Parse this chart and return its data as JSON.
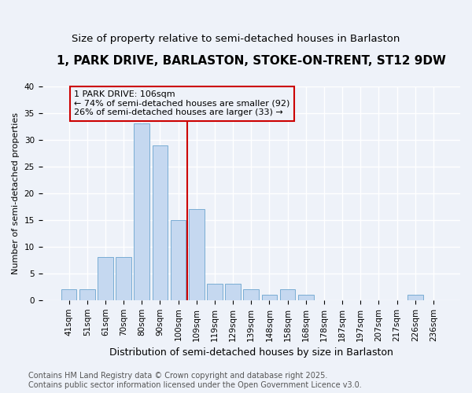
{
  "title": "1, PARK DRIVE, BARLASTON, STOKE-ON-TRENT, ST12 9DW",
  "subtitle": "Size of property relative to semi-detached houses in Barlaston",
  "xlabel": "Distribution of semi-detached houses by size in Barlaston",
  "ylabel": "Number of semi-detached properties",
  "categories": [
    "41sqm",
    "51sqm",
    "61sqm",
    "70sqm",
    "80sqm",
    "90sqm",
    "100sqm",
    "109sqm",
    "119sqm",
    "129sqm",
    "139sqm",
    "148sqm",
    "158sqm",
    "168sqm",
    "178sqm",
    "187sqm",
    "197sqm",
    "207sqm",
    "217sqm",
    "226sqm",
    "236sqm"
  ],
  "values": [
    2,
    2,
    8,
    8,
    33,
    29,
    15,
    17,
    3,
    3,
    2,
    1,
    2,
    1,
    0,
    0,
    0,
    0,
    0,
    1,
    0
  ],
  "bar_color": "#c5d8f0",
  "bar_edge_color": "#7aadd4",
  "vline_x_index": 6.5,
  "vline_color": "#cc0000",
  "annotation_text": "1 PARK DRIVE: 106sqm\n← 74% of semi-detached houses are smaller (92)\n26% of semi-detached houses are larger (33) →",
  "annotation_box_color": "#cc0000",
  "background_color": "#eef2f9",
  "grid_color": "#ffffff",
  "footer": "Contains HM Land Registry data © Crown copyright and database right 2025.\nContains public sector information licensed under the Open Government Licence v3.0.",
  "ylim": [
    0,
    40
  ],
  "yticks": [
    0,
    5,
    10,
    15,
    20,
    25,
    30,
    35,
    40
  ],
  "title_fontsize": 11,
  "subtitle_fontsize": 9.5,
  "xlabel_fontsize": 9,
  "ylabel_fontsize": 8,
  "tick_fontsize": 7.5,
  "annotation_fontsize": 8,
  "footer_fontsize": 7
}
